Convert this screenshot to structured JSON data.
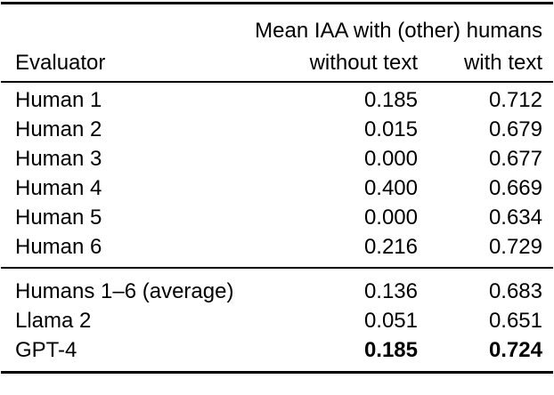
{
  "table": {
    "header": {
      "group_label": "Mean IAA with (other) humans",
      "col_evaluator": "Evaluator",
      "col_without_text": "without text",
      "col_with_text": "with text"
    },
    "rows_humans": [
      {
        "evaluator": "Human 1",
        "without_text": "0.185",
        "with_text": "0.712"
      },
      {
        "evaluator": "Human 2",
        "without_text": "0.015",
        "with_text": "0.679"
      },
      {
        "evaluator": "Human 3",
        "without_text": "0.000",
        "with_text": "0.677"
      },
      {
        "evaluator": "Human 4",
        "without_text": "0.400",
        "with_text": "0.669"
      },
      {
        "evaluator": "Human 5",
        "without_text": "0.000",
        "with_text": "0.634"
      },
      {
        "evaluator": "Human 6",
        "without_text": "0.216",
        "with_text": "0.729"
      }
    ],
    "rows_summary": [
      {
        "evaluator": "Humans 1–6 (average)",
        "without_text": "0.136",
        "with_text": "0.683",
        "bold_values": false
      },
      {
        "evaluator": "Llama 2",
        "without_text": "0.051",
        "with_text": "0.651",
        "bold_values": false
      },
      {
        "evaluator": "GPT-4",
        "without_text": "0.185",
        "with_text": "0.724",
        "bold_values": true
      }
    ],
    "colors": {
      "text": "#000000",
      "rule": "#000000",
      "background": "#ffffff"
    }
  }
}
